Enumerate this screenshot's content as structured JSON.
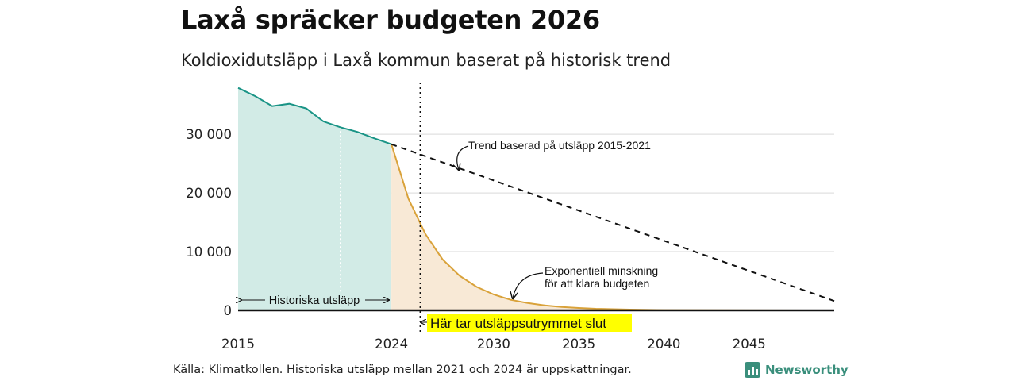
{
  "title": "Laxå spräcker budgeten 2026",
  "subtitle": "Koldioxidutsläpp i Laxå kommun baserat på historisk trend",
  "source": "Källa: Klimatkollen. Historiska utsläpp mellan 2021 och 2024 är uppskattningar.",
  "brand": {
    "name": "Newsworthy",
    "icon": "bar-chart-icon",
    "color": "#3a8f7c"
  },
  "chart_data": {
    "type": "area",
    "xlim": [
      2015,
      2050
    ],
    "ylim": [
      0,
      38000
    ],
    "x_ticks": [
      {
        "value": 2015,
        "label": "2015"
      },
      {
        "value": 2024,
        "label": "2024"
      },
      {
        "value": 2030,
        "label": "2030"
      },
      {
        "value": 2035,
        "label": "2035"
      },
      {
        "value": 2040,
        "label": "2040"
      },
      {
        "value": 2045,
        "label": "2045"
      }
    ],
    "y_ticks": [
      {
        "value": 0,
        "label": "0"
      },
      {
        "value": 10000,
        "label": "10 000"
      },
      {
        "value": 20000,
        "label": "20 000"
      },
      {
        "value": 30000,
        "label": "30 000"
      }
    ],
    "grid": true,
    "series": [
      {
        "kind": "historical",
        "color": "#1a9486",
        "fill": "#d2ebe6",
        "points": [
          [
            2015,
            37900
          ],
          [
            2016,
            36500
          ],
          [
            2017,
            34800
          ],
          [
            2018,
            35200
          ],
          [
            2019,
            34400
          ],
          [
            2020,
            32200
          ],
          [
            2021,
            31200
          ],
          [
            2022,
            30400
          ],
          [
            2023,
            29300
          ],
          [
            2024,
            28300
          ]
        ]
      },
      {
        "kind": "trend",
        "color": "#111111",
        "points": [
          [
            2024,
            28300
          ],
          [
            2050,
            1600
          ]
        ]
      },
      {
        "kind": "budget",
        "color": "#d9a23a",
        "fill": "#f8e9d6",
        "points": [
          [
            2024,
            28300
          ],
          [
            2025,
            19000
          ],
          [
            2026,
            13000
          ],
          [
            2027,
            8700
          ],
          [
            2028,
            5900
          ],
          [
            2029,
            4000
          ],
          [
            2030,
            2700
          ],
          [
            2031,
            1800
          ],
          [
            2032,
            1250
          ],
          [
            2033,
            850
          ],
          [
            2034,
            580
          ],
          [
            2035,
            400
          ],
          [
            2036,
            270
          ],
          [
            2038,
            130
          ],
          [
            2040,
            60
          ],
          [
            2045,
            10
          ],
          [
            2050,
            0
          ]
        ]
      }
    ],
    "budget_end_year": 2025.7,
    "annotations": {
      "trend": "Trend baserad på utsläpp 2015-2021",
      "decline_line1": "Exponentiell minskning",
      "decline_line2": "för att klara budgeten",
      "historical": "Historiska utsläpp",
      "budget_end": "Här tar utsläppsutrymmet slut"
    },
    "highlight_color": "#ffff00"
  }
}
